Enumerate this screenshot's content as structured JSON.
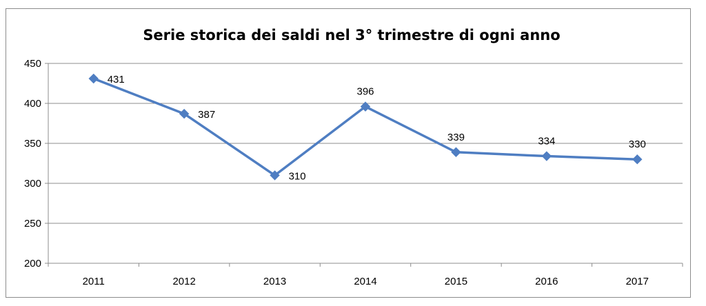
{
  "chart_data": {
    "type": "line",
    "title": "Serie storica dei saldi nel 3° trimestre di ogni anno",
    "categories": [
      "2011",
      "2012",
      "2013",
      "2014",
      "2015",
      "2016",
      "2017"
    ],
    "series": [
      {
        "values": [
          431,
          387,
          310,
          396,
          339,
          334,
          330
        ],
        "color": "#4f7ec2"
      }
    ],
    "data_labels": [
      "431",
      "387",
      "310",
      "396",
      "339",
      "334",
      "330"
    ],
    "ylim": [
      200,
      450
    ],
    "yticks": [
      200,
      250,
      300,
      350,
      400,
      450
    ],
    "ytick_labels": [
      "200",
      "250",
      "300",
      "350",
      "400",
      "450"
    ],
    "grid": true,
    "legend": "none",
    "marker": "diamond"
  }
}
